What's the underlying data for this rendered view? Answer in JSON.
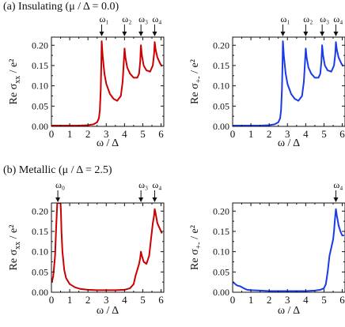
{
  "section_labels": {
    "insulating": "(a) Insulating (μ / Δ = 0.0)",
    "metallic": "(b) Metallic (μ / Δ = 2.5)"
  },
  "axis_labels": {
    "xlabel": "ω / Δ",
    "ylabel_xx": "Re σxx / e²",
    "ylabel_pm": "Re σ+- / e²"
  },
  "chart_data": [
    {
      "id": "a-left",
      "type": "line",
      "color": "#cc0000",
      "ylabel": "Re σxx / e²",
      "xlabel": "ω / Δ",
      "xlim": [
        0,
        6.15
      ],
      "ylim": [
        0,
        0.22
      ],
      "xticks": [
        0,
        1,
        2,
        3,
        4,
        5,
        6
      ],
      "yticks": [
        0.0,
        0.05,
        0.1,
        0.15,
        0.2
      ],
      "annotations": [
        {
          "label": "ω₁",
          "x": 2.75
        },
        {
          "label": "ω₂",
          "x": 4.0
        },
        {
          "label": "ω₃",
          "x": 4.9
        },
        {
          "label": "ω₄",
          "x": 5.65
        }
      ],
      "series": [
        {
          "x": [
            0,
            0.5,
            1.0,
            1.5,
            2.0,
            2.3,
            2.5,
            2.6,
            2.65,
            2.7,
            2.73,
            2.75,
            2.8,
            2.9,
            3.0,
            3.2,
            3.4,
            3.6,
            3.8,
            3.9,
            3.95,
            4.0,
            4.05,
            4.15,
            4.3,
            4.5,
            4.7,
            4.8,
            4.86,
            4.9,
            4.95,
            5.05,
            5.2,
            5.4,
            5.55,
            5.62,
            5.65,
            5.7,
            5.8,
            5.95,
            6.05
          ],
          "y": [
            0.002,
            0.002,
            0.002,
            0.002,
            0.003,
            0.005,
            0.01,
            0.02,
            0.04,
            0.09,
            0.15,
            0.21,
            0.175,
            0.13,
            0.105,
            0.08,
            0.068,
            0.063,
            0.075,
            0.11,
            0.15,
            0.192,
            0.17,
            0.145,
            0.13,
            0.12,
            0.12,
            0.13,
            0.16,
            0.2,
            0.175,
            0.15,
            0.138,
            0.135,
            0.15,
            0.18,
            0.208,
            0.19,
            0.17,
            0.155,
            0.148
          ]
        }
      ]
    },
    {
      "id": "a-right",
      "type": "line",
      "color": "#1a3be6",
      "ylabel": "Re σ+- / e²",
      "xlabel": "ω / Δ",
      "xlim": [
        0,
        6.15
      ],
      "ylim": [
        0,
        0.22
      ],
      "xticks": [
        0,
        1,
        2,
        3,
        4,
        5,
        6
      ],
      "yticks": [
        0.0,
        0.05,
        0.1,
        0.15,
        0.2
      ],
      "annotations": [
        {
          "label": "ω₁",
          "x": 2.75
        },
        {
          "label": "ω₂",
          "x": 4.0
        },
        {
          "label": "ω₃",
          "x": 4.9
        },
        {
          "label": "ω₄",
          "x": 5.65
        }
      ],
      "series": [
        {
          "x": [
            0,
            0.5,
            1.0,
            1.5,
            2.0,
            2.3,
            2.5,
            2.6,
            2.65,
            2.7,
            2.73,
            2.75,
            2.8,
            2.9,
            3.0,
            3.2,
            3.4,
            3.6,
            3.8,
            3.9,
            3.95,
            4.0,
            4.05,
            4.15,
            4.3,
            4.5,
            4.7,
            4.8,
            4.86,
            4.9,
            4.95,
            5.05,
            5.2,
            5.4,
            5.55,
            5.62,
            5.65,
            5.7,
            5.8,
            5.95,
            6.05
          ],
          "y": [
            0.002,
            0.002,
            0.002,
            0.002,
            0.003,
            0.005,
            0.01,
            0.02,
            0.04,
            0.09,
            0.15,
            0.21,
            0.175,
            0.13,
            0.105,
            0.08,
            0.068,
            0.063,
            0.075,
            0.11,
            0.15,
            0.192,
            0.17,
            0.145,
            0.13,
            0.12,
            0.12,
            0.13,
            0.16,
            0.2,
            0.175,
            0.15,
            0.138,
            0.135,
            0.15,
            0.18,
            0.208,
            0.19,
            0.17,
            0.155,
            0.148
          ]
        }
      ]
    },
    {
      "id": "b-left",
      "type": "line",
      "color": "#cc0000",
      "ylabel": "Re σxx / e²",
      "xlabel": "ω / Δ",
      "xlim": [
        0,
        6.15
      ],
      "ylim": [
        0,
        0.22
      ],
      "xticks": [
        0,
        1,
        2,
        3,
        4,
        5,
        6
      ],
      "yticks": [
        0.0,
        0.05,
        0.1,
        0.15,
        0.2
      ],
      "annotations": [
        {
          "label": "ω₀",
          "x": 0.35
        },
        {
          "label": "ω₃",
          "x": 4.9
        },
        {
          "label": "ω₄",
          "x": 5.65
        }
      ],
      "series": [
        {
          "x": [
            0.02,
            0.1,
            0.2,
            0.26,
            0.3,
            0.32,
            0.34,
            0.5,
            0.52,
            0.55,
            0.6,
            0.7,
            0.8,
            1.0,
            1.3,
            1.6,
            2.0,
            2.5,
            3.0,
            3.5,
            4.0,
            4.3,
            4.5,
            4.6,
            4.7,
            4.8,
            4.86,
            4.9,
            4.95,
            5.05,
            5.2,
            5.35,
            5.45,
            5.55,
            5.62,
            5.65,
            5.7,
            5.8,
            5.95,
            6.05
          ],
          "y": [
            0.025,
            0.04,
            0.09,
            0.16,
            0.2,
            0.22,
            0.22,
            0.22,
            0.2,
            0.15,
            0.1,
            0.055,
            0.035,
            0.02,
            0.012,
            0.008,
            0.006,
            0.005,
            0.005,
            0.005,
            0.006,
            0.01,
            0.02,
            0.04,
            0.055,
            0.07,
            0.085,
            0.1,
            0.09,
            0.075,
            0.07,
            0.09,
            0.13,
            0.17,
            0.19,
            0.205,
            0.195,
            0.17,
            0.155,
            0.145
          ]
        }
      ]
    },
    {
      "id": "b-right",
      "type": "line",
      "color": "#1a3be6",
      "ylabel": "Re σ+- / e²",
      "xlabel": "ω / Δ",
      "xlim": [
        0,
        6.15
      ],
      "ylim": [
        0,
        0.22
      ],
      "xticks": [
        0,
        1,
        2,
        3,
        4,
        5,
        6
      ],
      "yticks": [
        0.0,
        0.05,
        0.1,
        0.15,
        0.2
      ],
      "annotations": [
        {
          "label": "ω₄",
          "x": 5.65
        }
      ],
      "series": [
        {
          "x": [
            0.02,
            0.1,
            0.2,
            0.3,
            0.4,
            0.6,
            0.8,
            1.0,
            1.5,
            2.0,
            2.5,
            3.0,
            3.5,
            4.0,
            4.5,
            4.8,
            5.0,
            5.1,
            5.2,
            5.3,
            5.4,
            5.5,
            5.55,
            5.6,
            5.65,
            5.7,
            5.8,
            5.9,
            6.0,
            6.1
          ],
          "y": [
            0.025,
            0.022,
            0.018,
            0.016,
            0.015,
            0.01,
            0.006,
            0.005,
            0.004,
            0.003,
            0.003,
            0.003,
            0.003,
            0.003,
            0.004,
            0.006,
            0.01,
            0.02,
            0.05,
            0.09,
            0.11,
            0.13,
            0.15,
            0.18,
            0.205,
            0.19,
            0.165,
            0.15,
            0.14,
            0.14
          ]
        }
      ]
    }
  ]
}
